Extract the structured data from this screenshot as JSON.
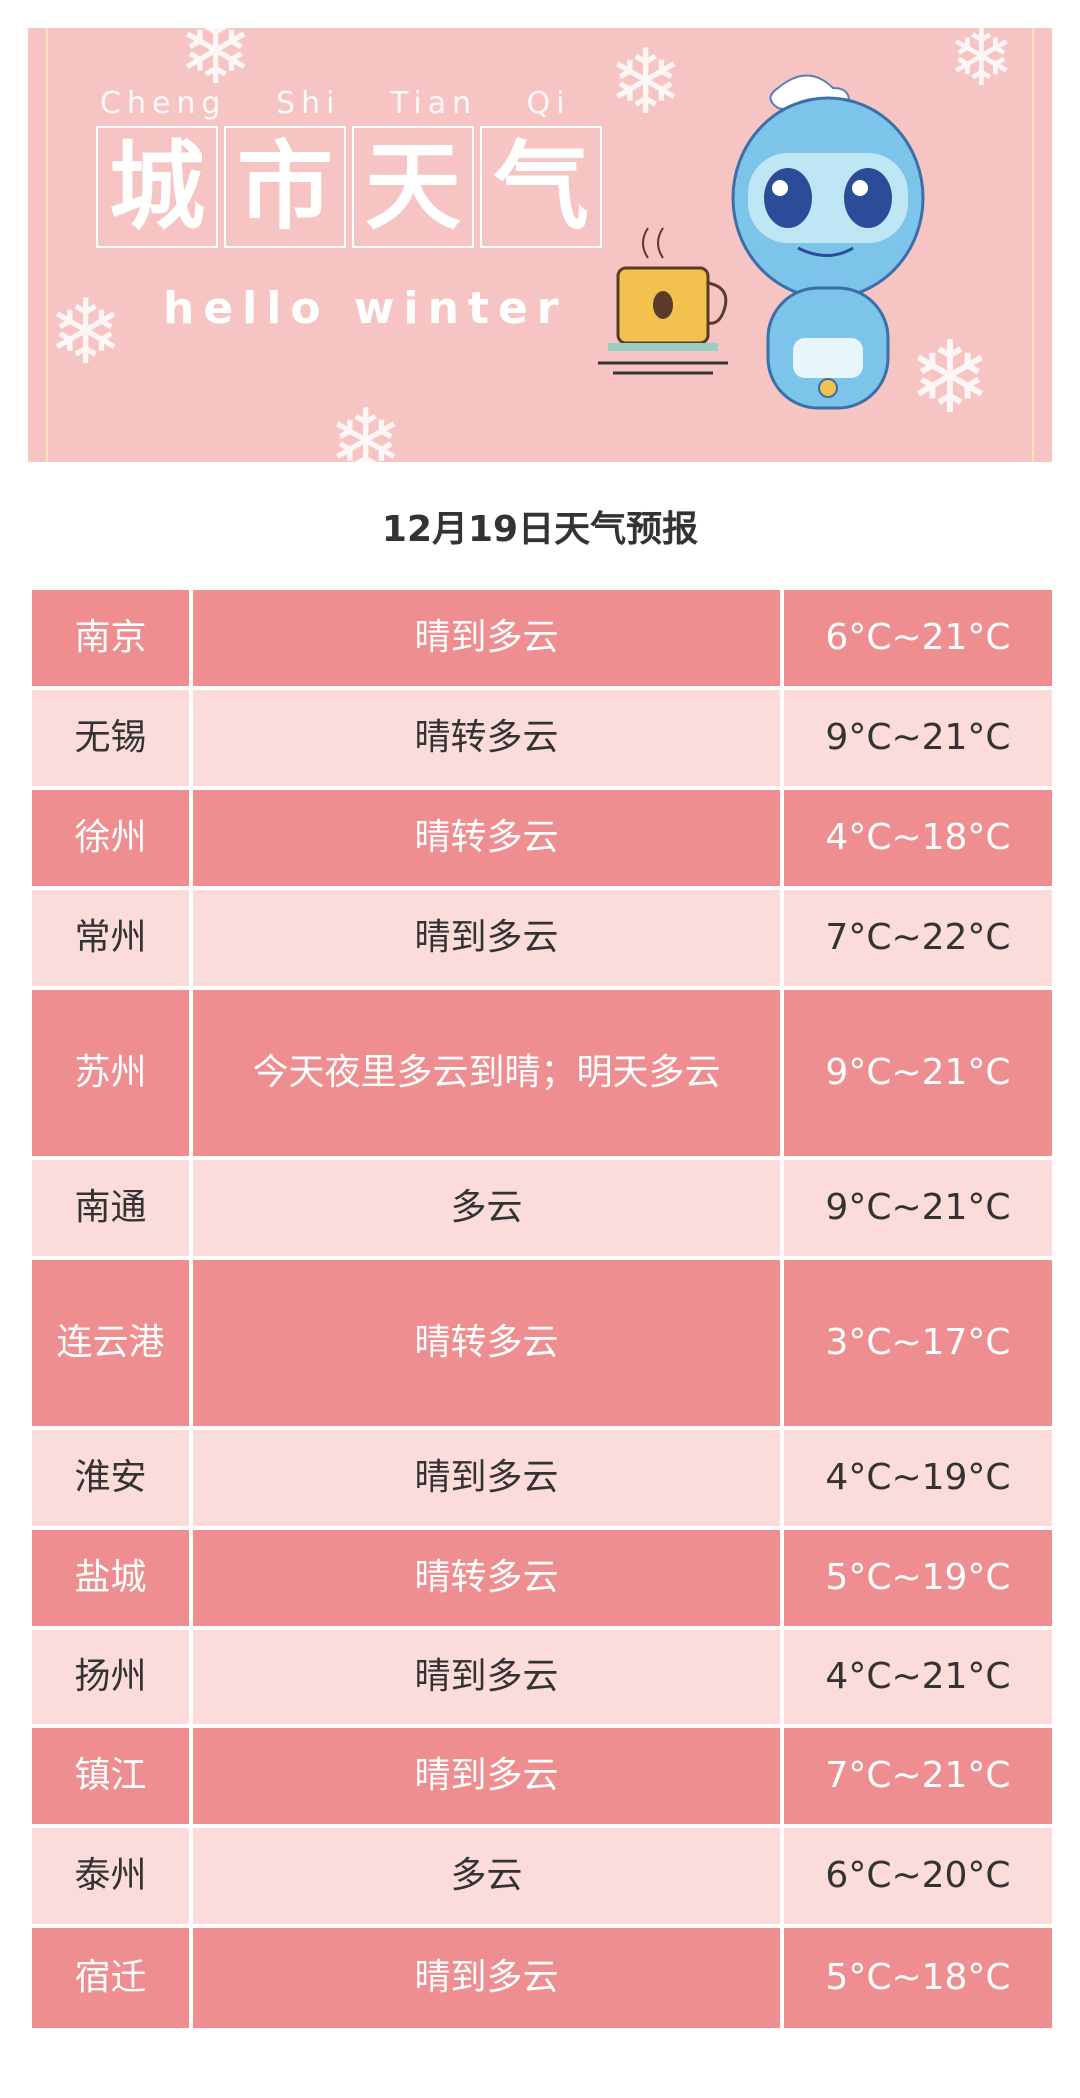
{
  "banner": {
    "pinyin": [
      "Cheng",
      "Shi",
      "Tian",
      "Qi"
    ],
    "title_chars": [
      "城",
      "市",
      "天",
      "气"
    ],
    "subtitle": "hello winter"
  },
  "title": "12月19日天气预报",
  "colors": {
    "dark_row": "#ee8e90",
    "light_row": "#fbdcda",
    "banner": "#f6c4c3"
  },
  "rows": [
    {
      "city": "南京",
      "weather": "晴到多云",
      "temp": "6°C~21°C"
    },
    {
      "city": "无锡",
      "weather": "晴转多云",
      "temp": "9°C~21°C"
    },
    {
      "city": "徐州",
      "weather": "晴转多云",
      "temp": "4°C~18°C"
    },
    {
      "city": "常州",
      "weather": "晴到多云",
      "temp": "7°C~22°C"
    },
    {
      "city": "苏州",
      "weather": "今天夜里多云到晴；明天多云",
      "temp": "9°C~21°C"
    },
    {
      "city": "南通",
      "weather": "多云",
      "temp": "9°C~21°C"
    },
    {
      "city": "连云港",
      "weather": "晴转多云",
      "temp": "3°C~17°C"
    },
    {
      "city": "淮安",
      "weather": "晴到多云",
      "temp": "4°C~19°C"
    },
    {
      "city": "盐城",
      "weather": "晴转多云",
      "temp": "5°C~19°C"
    },
    {
      "city": "扬州",
      "weather": "晴到多云",
      "temp": "4°C~21°C"
    },
    {
      "city": "镇江",
      "weather": "晴到多云",
      "temp": "7°C~21°C"
    },
    {
      "city": "泰州",
      "weather": "多云",
      "temp": "6°C~20°C"
    },
    {
      "city": "宿迁",
      "weather": "晴到多云",
      "temp": "5°C~18°C"
    }
  ]
}
